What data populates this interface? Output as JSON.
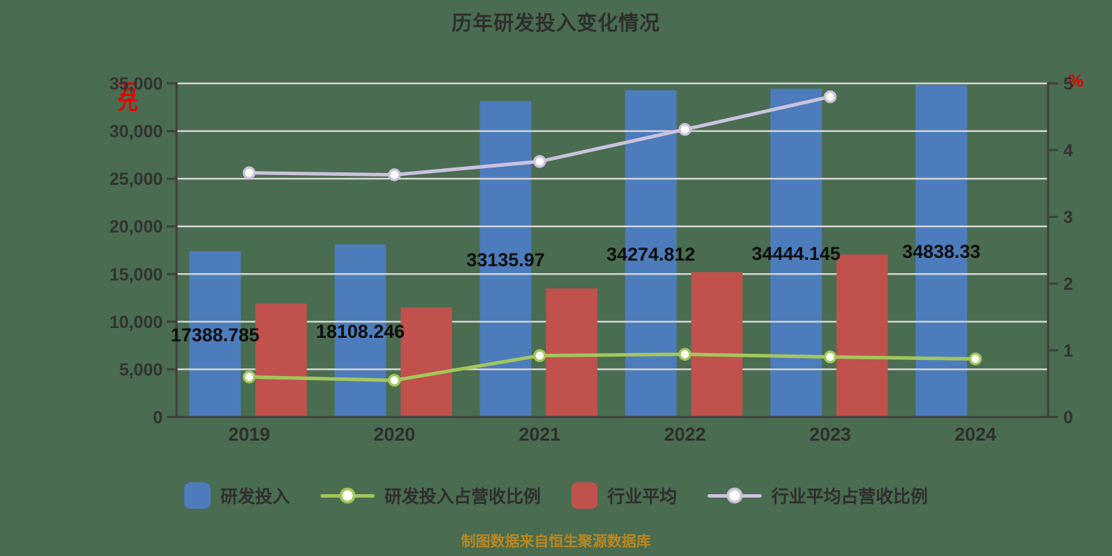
{
  "title": "历年研发投入变化情况",
  "source_note": "制图数据来自恒生聚源数据库",
  "colors": {
    "background": "#4A6C50",
    "rd_bar": "#4D7CBD",
    "industry_bar": "#C0514D",
    "rd_ratio_line": "#A2C75B",
    "industry_ratio_line": "#CBC3DE",
    "gridline": "#D6D6D6",
    "axis": "#3F3F3F",
    "axis_unit_text": "#E60000",
    "source_note_text": "#BB8720"
  },
  "chart_data": {
    "type": "bar+line combo",
    "title": "历年研发投入变化情况",
    "categories": [
      "2019",
      "2020",
      "2021",
      "2022",
      "2023",
      "2024"
    ],
    "series": [
      {
        "name": "研发投入",
        "type": "bar",
        "axis": "left",
        "color": "#4D7CBD",
        "values": [
          17388.785,
          18108.246,
          33135.97,
          34274.812,
          34444.145,
          34838.33
        ],
        "labels": [
          "17388.785",
          "18108.246",
          "33135.97",
          "34274.812",
          "34444.145",
          "34838.33"
        ]
      },
      {
        "name": "行业平均",
        "type": "bar",
        "axis": "left",
        "color": "#C0514D",
        "values": [
          11900,
          11500,
          13500,
          15200,
          17050,
          null
        ]
      },
      {
        "name": "研发投入占营收比例",
        "type": "line",
        "axis": "right",
        "color": "#A2C75B",
        "values": [
          0.6,
          0.55,
          0.92,
          0.94,
          0.9,
          0.87
        ]
      },
      {
        "name": "行业平均占营收比例",
        "type": "line",
        "axis": "right",
        "color": "#CBC3DE",
        "values": [
          3.66,
          3.63,
          3.83,
          4.31,
          4.8,
          null
        ]
      }
    ],
    "left_axis": {
      "unit": "万元",
      "min": 0,
      "max": 35000,
      "step": 5000,
      "tick_labels": [
        "0",
        "5,000",
        "10,000",
        "15,000",
        "20,000",
        "25,000",
        "30,000",
        "35,000"
      ]
    },
    "right_axis": {
      "unit": "%",
      "min": 0,
      "max": 5,
      "step": 1,
      "tick_labels": [
        "0",
        "1",
        "2",
        "3",
        "4",
        "5"
      ]
    },
    "grid": true,
    "legend_position": "bottom"
  }
}
